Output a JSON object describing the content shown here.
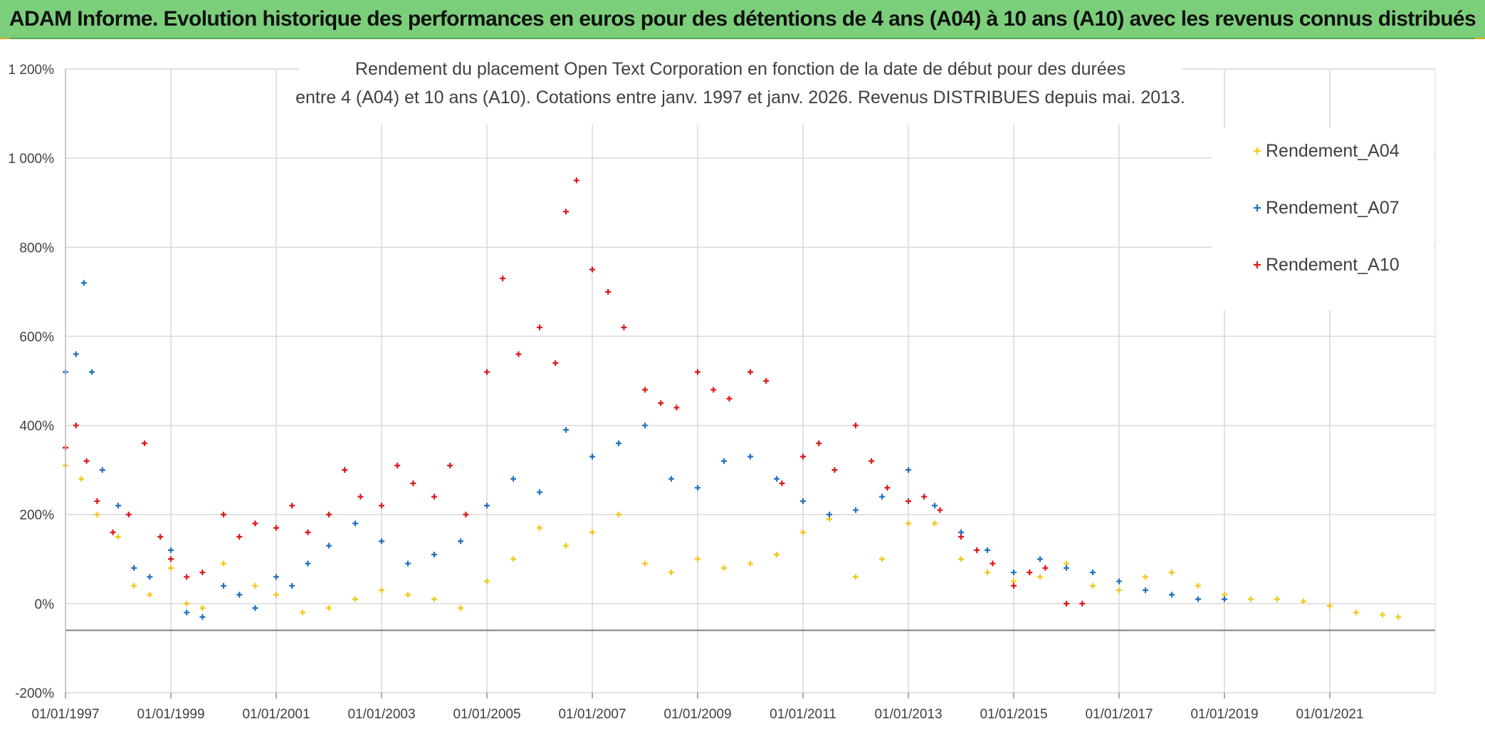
{
  "banner": {
    "title": "ADAM Informe. Evolution historique des performances en euros pour des détentions de 4 ans (A04) à 10 ans (A10) avec les revenus connus distribués"
  },
  "colors": {
    "banner_bg": "#7ccf7a",
    "A04": "#f5c518",
    "A07": "#1f6fbf",
    "A10": "#e01414",
    "grid": "#d9d9d9",
    "zero_line": "#7f7f7f"
  },
  "chart_data": {
    "type": "scatter",
    "title_line1": "Rendement du placement Open Text Corporation en fonction de la date de début pour des durées",
    "title_line2": "entre 4 (A04) et 10 ans (A10). Cotations entre janv. 1997 et janv. 2026. Revenus DISTRIBUES depuis mai. 2013.",
    "xlabel": "",
    "ylabel": "",
    "x_range": [
      1997.0,
      2023.0
    ],
    "ylim": [
      -200,
      1200
    ],
    "y_ticks": [
      -200,
      0,
      200,
      400,
      600,
      800,
      1000,
      1200
    ],
    "y_tick_labels": [
      "-200%",
      "0%",
      "200%",
      "400%",
      "600%",
      "800%",
      "1 000%",
      "1 200%"
    ],
    "x_ticks": [
      1997,
      1999,
      2001,
      2003,
      2005,
      2007,
      2009,
      2011,
      2013,
      2015,
      2017,
      2019,
      2021
    ],
    "x_tick_labels": [
      "01/01/1997",
      "01/01/1999",
      "01/01/2001",
      "01/01/2003",
      "01/01/2005",
      "01/01/2007",
      "01/01/2009",
      "01/01/2011",
      "01/01/2013",
      "01/01/2015",
      "01/01/2017",
      "01/01/2019",
      "01/01/2021"
    ],
    "legend_position": "top-right",
    "series": [
      {
        "name": "Rendement_A04",
        "color": "#f5c518",
        "x": [
          1997.0,
          1997.3,
          1997.6,
          1998.0,
          1998.3,
          1998.6,
          1999.0,
          1999.3,
          1999.6,
          2000.0,
          2000.3,
          2000.6,
          2001.0,
          2001.5,
          2002.0,
          2002.5,
          2003.0,
          2003.5,
          2004.0,
          2004.5,
          2005.0,
          2005.5,
          2006.0,
          2006.5,
          2007.0,
          2007.5,
          2008.0,
          2008.5,
          2009.0,
          2009.5,
          2010.0,
          2010.5,
          2011.0,
          2011.5,
          2012.0,
          2012.5,
          2013.0,
          2013.5,
          2014.0,
          2014.5,
          2015.0,
          2015.5,
          2016.0,
          2016.5,
          2017.0,
          2017.5,
          2018.0,
          2018.5,
          2019.0,
          2019.5,
          2020.0,
          2020.5,
          2021.0,
          2021.5,
          2022.0,
          2022.3
        ],
        "y": [
          310,
          280,
          200,
          150,
          40,
          20,
          80,
          0,
          -10,
          90,
          20,
          40,
          20,
          -20,
          -10,
          10,
          30,
          20,
          10,
          -10,
          50,
          100,
          170,
          130,
          160,
          200,
          90,
          70,
          100,
          80,
          90,
          110,
          160,
          190,
          60,
          100,
          180,
          180,
          100,
          70,
          50,
          60,
          90,
          40,
          30,
          60,
          70,
          40,
          20,
          10,
          10,
          5,
          -5,
          -20,
          -25,
          -30
        ]
      },
      {
        "name": "Rendement_A07",
        "color": "#1f6fbf",
        "x": [
          1997.0,
          1997.2,
          1997.35,
          1997.5,
          1997.7,
          1998.0,
          1998.3,
          1998.6,
          1999.0,
          1999.3,
          1999.6,
          2000.0,
          2000.3,
          2000.6,
          2001.0,
          2001.3,
          2001.6,
          2002.0,
          2002.5,
          2003.0,
          2003.5,
          2004.0,
          2004.5,
          2005.0,
          2005.5,
          2006.0,
          2006.5,
          2007.0,
          2007.5,
          2008.0,
          2008.5,
          2009.0,
          2009.5,
          2010.0,
          2010.5,
          2011.0,
          2011.5,
          2012.0,
          2012.5,
          2013.0,
          2013.5,
          2014.0,
          2014.5,
          2015.0,
          2015.5,
          2016.0,
          2016.5,
          2017.0,
          2017.5,
          2018.0,
          2018.5,
          2019.0
        ],
        "y": [
          520,
          560,
          720,
          520,
          300,
          220,
          80,
          60,
          120,
          -20,
          -30,
          40,
          20,
          -10,
          60,
          40,
          90,
          130,
          180,
          140,
          90,
          110,
          140,
          220,
          280,
          250,
          390,
          330,
          360,
          400,
          280,
          260,
          320,
          330,
          280,
          230,
          200,
          210,
          240,
          300,
          220,
          160,
          120,
          70,
          100,
          80,
          70,
          50,
          30,
          20,
          10,
          10
        ]
      },
      {
        "name": "Rendement_A10",
        "color": "#e01414",
        "x": [
          1997.0,
          1997.2,
          1997.4,
          1997.6,
          1997.9,
          1998.2,
          1998.5,
          1998.8,
          1999.0,
          1999.3,
          1999.6,
          2000.0,
          2000.3,
          2000.6,
          2001.0,
          2001.3,
          2001.6,
          2002.0,
          2002.3,
          2002.6,
          2003.0,
          2003.3,
          2003.6,
          2004.0,
          2004.3,
          2004.6,
          2005.0,
          2005.3,
          2005.6,
          2006.0,
          2006.3,
          2006.5,
          2006.7,
          2007.0,
          2007.3,
          2007.6,
          2008.0,
          2008.3,
          2008.6,
          2009.0,
          2009.3,
          2009.6,
          2010.0,
          2010.3,
          2010.6,
          2011.0,
          2011.3,
          2011.6,
          2012.0,
          2012.3,
          2012.6,
          2013.0,
          2013.3,
          2013.6,
          2014.0,
          2014.3,
          2014.6,
          2015.0,
          2015.3,
          2015.6,
          2016.0,
          2016.3
        ],
        "y": [
          350,
          400,
          320,
          230,
          160,
          200,
          360,
          150,
          100,
          60,
          70,
          200,
          150,
          180,
          170,
          220,
          160,
          200,
          300,
          240,
          220,
          310,
          270,
          240,
          310,
          200,
          520,
          730,
          560,
          620,
          540,
          880,
          950,
          750,
          700,
          620,
          480,
          450,
          440,
          520,
          480,
          460,
          520,
          500,
          270,
          330,
          360,
          300,
          400,
          320,
          260,
          230,
          240,
          210,
          150,
          120,
          90,
          40,
          70,
          80,
          0,
          0
        ]
      }
    ],
    "legend": [
      "Rendement_A04",
      "Rendement_A07",
      "Rendement_A10"
    ]
  }
}
